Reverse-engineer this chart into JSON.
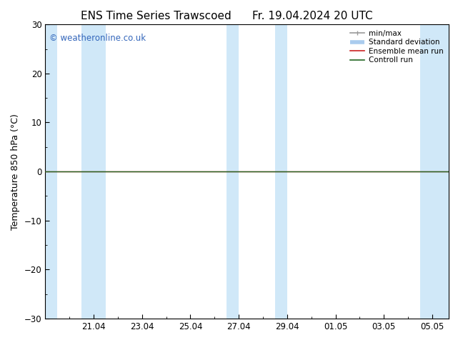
{
  "title_left": "ENS Time Series Trawscoed",
  "title_right": "Fr. 19.04.2024 20 UTC",
  "ylabel": "Temperature 850 hPa (°C)",
  "ylim": [
    -30,
    30
  ],
  "yticks": [
    -30,
    -20,
    -10,
    0,
    10,
    20,
    30
  ],
  "xtick_labels": [
    "21.04",
    "23.04",
    "25.04",
    "27.04",
    "29.04",
    "01.05",
    "03.05",
    "05.05"
  ],
  "xtick_positions": [
    2,
    4,
    6,
    8,
    10,
    12,
    14,
    16
  ],
  "xlim": [
    0,
    16.67
  ],
  "background_color": "#ffffff",
  "plot_bg_color": "#ffffff",
  "watermark": "© weatheronline.co.uk",
  "watermark_color": "#3366bb",
  "shaded_bands_color": "#d0e8f8",
  "shaded_day_pairs": [
    [
      0.0,
      0.5
    ],
    [
      1.5,
      2.5
    ],
    [
      7.5,
      8.0
    ],
    [
      9.5,
      10.0
    ],
    [
      15.5,
      16.67
    ]
  ],
  "line_y_value": 0.0,
  "ensemble_mean_color": "#cc2222",
  "control_run_color": "#226622",
  "legend_items": [
    {
      "label": "min/max",
      "color": "#999999",
      "lw": 1.2
    },
    {
      "label": "Standard deviation",
      "color": "#aaccee",
      "lw": 4
    },
    {
      "label": "Ensemble mean run",
      "color": "#cc2222",
      "lw": 1.2
    },
    {
      "label": "Controll run",
      "color": "#226622",
      "lw": 1.2
    }
  ],
  "title_fontsize": 11,
  "axis_label_fontsize": 9,
  "tick_fontsize": 8.5,
  "watermark_fontsize": 8.5,
  "legend_fontsize": 7.5
}
